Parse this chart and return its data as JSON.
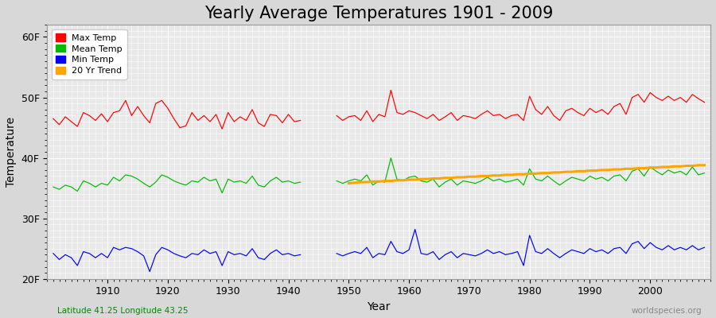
{
  "title": "Yearly Average Temperatures 1901 - 2009",
  "xlabel": "Year",
  "ylabel": "Temperature",
  "lat_lon_label": "Latitude 41.25 Longitude 43.25",
  "source_label": "worldspecies.org",
  "years": [
    1901,
    1902,
    1903,
    1904,
    1905,
    1906,
    1907,
    1908,
    1909,
    1910,
    1911,
    1912,
    1913,
    1914,
    1915,
    1916,
    1917,
    1918,
    1919,
    1920,
    1921,
    1922,
    1923,
    1924,
    1925,
    1926,
    1927,
    1928,
    1929,
    1930,
    1931,
    1932,
    1933,
    1934,
    1935,
    1936,
    1937,
    1938,
    1939,
    1940,
    1941,
    1942,
    null,
    null,
    null,
    null,
    null,
    1948,
    1949,
    1950,
    1951,
    1952,
    1953,
    1954,
    1955,
    1956,
    1957,
    1958,
    1959,
    1960,
    1961,
    1962,
    1963,
    1964,
    1965,
    1966,
    1967,
    1968,
    1969,
    1970,
    1971,
    1972,
    1973,
    1974,
    1975,
    1976,
    1977,
    1978,
    1979,
    1980,
    1981,
    1982,
    1983,
    1984,
    1985,
    1986,
    1987,
    1988,
    1989,
    1990,
    1991,
    1992,
    1993,
    1994,
    1995,
    1996,
    1997,
    1998,
    1999,
    2000,
    2001,
    2002,
    2003,
    2004,
    2005,
    2006,
    2007,
    2008,
    2009
  ],
  "max_temp": [
    46.5,
    45.5,
    46.8,
    46.0,
    45.2,
    47.5,
    47.0,
    46.2,
    47.3,
    46.0,
    47.5,
    47.8,
    49.5,
    47.0,
    48.5,
    47.0,
    45.8,
    49.0,
    49.5,
    48.2,
    46.5,
    45.0,
    45.3,
    47.5,
    46.2,
    47.0,
    46.0,
    47.2,
    44.8,
    47.5,
    46.0,
    46.8,
    46.2,
    48.0,
    45.8,
    45.2,
    47.2,
    47.0,
    45.8,
    47.2,
    46.0,
    46.2,
    null,
    null,
    null,
    null,
    null,
    47.0,
    46.2,
    46.8,
    47.0,
    46.2,
    47.8,
    46.0,
    47.2,
    46.8,
    51.2,
    47.5,
    47.2,
    47.8,
    47.5,
    47.0,
    46.5,
    47.2,
    46.2,
    46.8,
    47.5,
    46.2,
    47.0,
    46.8,
    46.5,
    47.2,
    47.8,
    47.0,
    47.2,
    46.5,
    47.0,
    47.2,
    46.2,
    50.2,
    48.0,
    47.2,
    48.5,
    47.0,
    46.2,
    47.8,
    48.2,
    47.5,
    47.0,
    48.2,
    47.5,
    48.0,
    47.2,
    48.5,
    49.0,
    47.2,
    50.0,
    50.5,
    49.2,
    50.8,
    50.0,
    49.5,
    50.2,
    49.5,
    50.0,
    49.2,
    50.5,
    49.8,
    49.2
  ],
  "mean_temp": [
    35.2,
    34.8,
    35.5,
    35.2,
    34.5,
    36.2,
    35.8,
    35.2,
    35.8,
    35.5,
    36.8,
    36.2,
    37.2,
    37.0,
    36.5,
    35.8,
    35.2,
    36.0,
    37.2,
    36.8,
    36.2,
    35.8,
    35.5,
    36.2,
    36.0,
    36.8,
    36.2,
    36.5,
    34.2,
    36.5,
    36.0,
    36.2,
    35.8,
    37.0,
    35.5,
    35.2,
    36.2,
    36.8,
    36.0,
    36.2,
    35.8,
    36.0,
    null,
    null,
    null,
    null,
    null,
    36.2,
    35.8,
    36.2,
    36.5,
    36.2,
    37.2,
    35.5,
    36.2,
    36.0,
    40.0,
    36.5,
    36.2,
    36.8,
    37.0,
    36.2,
    36.0,
    36.5,
    35.2,
    36.0,
    36.5,
    35.5,
    36.2,
    36.0,
    35.8,
    36.2,
    36.8,
    36.2,
    36.5,
    36.0,
    36.2,
    36.5,
    35.5,
    38.2,
    36.5,
    36.2,
    37.0,
    36.2,
    35.5,
    36.2,
    36.8,
    36.5,
    36.2,
    37.0,
    36.5,
    36.8,
    36.2,
    37.0,
    37.2,
    36.2,
    37.8,
    38.2,
    37.0,
    38.5,
    37.8,
    37.2,
    38.0,
    37.5,
    37.8,
    37.2,
    38.5,
    37.2,
    37.5
  ],
  "min_temp": [
    24.2,
    23.2,
    24.0,
    23.5,
    22.2,
    24.5,
    24.2,
    23.5,
    24.2,
    23.5,
    25.2,
    24.8,
    25.2,
    25.0,
    24.5,
    23.8,
    21.2,
    24.0,
    25.2,
    24.8,
    24.2,
    23.8,
    23.5,
    24.2,
    24.0,
    24.8,
    24.2,
    24.5,
    22.2,
    24.5,
    24.0,
    24.2,
    23.8,
    25.0,
    23.5,
    23.2,
    24.2,
    24.8,
    24.0,
    24.2,
    23.8,
    24.0,
    null,
    null,
    null,
    null,
    null,
    24.2,
    23.8,
    24.2,
    24.5,
    24.2,
    25.2,
    23.5,
    24.2,
    24.0,
    26.2,
    24.5,
    24.2,
    24.8,
    28.2,
    24.2,
    24.0,
    24.5,
    23.2,
    24.0,
    24.5,
    23.5,
    24.2,
    24.0,
    23.8,
    24.2,
    24.8,
    24.2,
    24.5,
    24.0,
    24.2,
    24.5,
    22.2,
    27.2,
    24.5,
    24.2,
    25.0,
    24.2,
    23.5,
    24.2,
    24.8,
    24.5,
    24.2,
    25.0,
    24.5,
    24.8,
    24.2,
    25.0,
    25.2,
    24.2,
    25.8,
    26.2,
    25.0,
    26.0,
    25.2,
    24.8,
    25.5,
    24.8,
    25.2,
    24.8,
    25.5,
    24.8,
    25.2
  ],
  "trend_start_year": 1950,
  "trend_values": [
    35.8,
    35.9,
    36.0,
    36.0,
    36.1,
    36.1,
    36.2,
    36.2,
    36.3,
    36.3,
    36.4,
    36.4,
    36.5,
    36.5,
    36.6,
    36.6,
    36.7,
    36.7,
    36.8,
    36.8,
    36.9,
    36.9,
    37.0,
    37.0,
    37.1,
    37.1,
    37.2,
    37.2,
    37.3,
    37.3,
    37.4,
    37.4,
    37.5,
    37.5,
    37.6,
    37.6,
    37.7,
    37.7,
    37.8,
    37.8,
    37.9,
    37.9,
    38.0,
    38.0,
    38.1,
    38.1,
    38.2,
    38.2,
    38.3,
    38.3,
    38.4,
    38.4,
    38.5,
    38.5,
    38.6,
    38.6,
    38.7,
    38.7,
    38.8,
    38.8
  ],
  "ylim": [
    20,
    62
  ],
  "yticks": [
    20,
    30,
    40,
    50,
    60
  ],
  "ytick_labels": [
    "20F",
    "30F",
    "40F",
    "50F",
    "60F"
  ],
  "xticks": [
    1910,
    1920,
    1930,
    1940,
    1950,
    1960,
    1970,
    1980,
    1990,
    2000
  ],
  "bg_color": "#d8d8d8",
  "plot_bg_color": "#e8e8e8",
  "grid_color": "#ffffff",
  "max_color": "#ff0000",
  "mean_color": "#00bb00",
  "min_color": "#0000ff",
  "trend_color": "#ffa500",
  "title_fontsize": 15,
  "axis_label_fontsize": 10,
  "tick_fontsize": 9,
  "lat_lon_color": "#008800",
  "source_color": "#888888"
}
